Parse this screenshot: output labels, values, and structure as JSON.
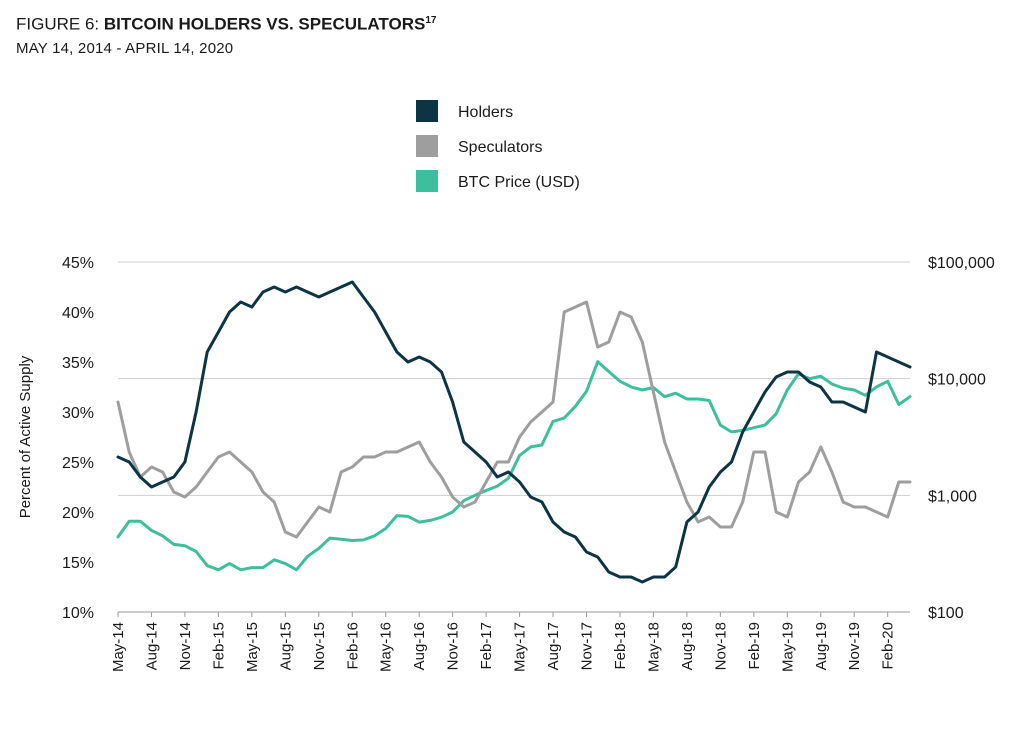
{
  "title": {
    "prefix": "FIGURE 6: ",
    "main": "BITCOIN HOLDERS VS. SPECULATORS",
    "superscript": "17"
  },
  "subtitle": "MAY 14, 2014 -  APRIL 14, 2020",
  "chart_data": {
    "type": "line",
    "title": "FIGURE 6: BITCOIN HOLDERS VS. SPECULATORS",
    "subtitle": "MAY 14, 2014 -  APRIL 14, 2020",
    "ylabel": "Percent of Active Supply",
    "x_tick_labels": [
      "May-14",
      "Aug-14",
      "Nov-14",
      "Feb-15",
      "May-15",
      "Aug-15",
      "Nov-15",
      "Feb-16",
      "May-16",
      "Aug-16",
      "Nov-16",
      "Feb-17",
      "May-17",
      "Aug-17",
      "Nov-17",
      "Feb-18",
      "May-18",
      "Aug-18",
      "Nov-18",
      "Feb-19",
      "May-19",
      "Aug-19",
      "Nov-19",
      "Feb-20"
    ],
    "y_left": {
      "ticks": [
        "10%",
        "15%",
        "20%",
        "25%",
        "30%",
        "35%",
        "40%",
        "45%"
      ],
      "range": [
        10,
        45
      ],
      "unit": "percent"
    },
    "y_right": {
      "ticks": [
        "$100",
        "$1,000",
        "$10,000",
        "$100,000"
      ],
      "range": [
        100,
        100000
      ],
      "scale": "log"
    },
    "grid": "horizontal, right-axis major ticks",
    "legend": {
      "position": "top-center"
    },
    "series": [
      {
        "name": "Holders",
        "axis": "left",
        "color": "#0d3444",
        "x": [
          "2014-05",
          "2014-06",
          "2014-07",
          "2014-08",
          "2014-09",
          "2014-10",
          "2014-11",
          "2014-12",
          "2015-01",
          "2015-02",
          "2015-03",
          "2015-04",
          "2015-05",
          "2015-06",
          "2015-07",
          "2015-08",
          "2015-09",
          "2015-10",
          "2015-11",
          "2015-12",
          "2016-01",
          "2016-02",
          "2016-03",
          "2016-04",
          "2016-05",
          "2016-06",
          "2016-07",
          "2016-08",
          "2016-09",
          "2016-10",
          "2016-11",
          "2016-12",
          "2017-01",
          "2017-02",
          "2017-03",
          "2017-04",
          "2017-05",
          "2017-06",
          "2017-07",
          "2017-08",
          "2017-09",
          "2017-10",
          "2017-11",
          "2017-12",
          "2018-01",
          "2018-02",
          "2018-03",
          "2018-04",
          "2018-05",
          "2018-06",
          "2018-07",
          "2018-08",
          "2018-09",
          "2018-10",
          "2018-11",
          "2018-12",
          "2019-01",
          "2019-02",
          "2019-03",
          "2019-04",
          "2019-05",
          "2019-06",
          "2019-07",
          "2019-08",
          "2019-09",
          "2019-10",
          "2019-11",
          "2019-12",
          "2020-01",
          "2020-02",
          "2020-03",
          "2020-04"
        ],
        "values": [
          25.5,
          25,
          23.5,
          22.5,
          23,
          23.5,
          25,
          30,
          36,
          38,
          40,
          41,
          40.5,
          42,
          42.5,
          42,
          42.5,
          42,
          41.5,
          42,
          42.5,
          43,
          41.5,
          40,
          38,
          36,
          35,
          35.5,
          35,
          34,
          31,
          27,
          26,
          25,
          23.5,
          24,
          23,
          21.5,
          21,
          19,
          18,
          17.5,
          16,
          15.5,
          14,
          13.5,
          13.5,
          13,
          13.5,
          13.5,
          14.5,
          19,
          20,
          22.5,
          24,
          25,
          28,
          30,
          32,
          33.5,
          34,
          34,
          33,
          32.5,
          31,
          31,
          30.5,
          30,
          36,
          35.5,
          35,
          34.5
        ]
      },
      {
        "name": "Speculators",
        "axis": "left",
        "color": "#9e9e9e",
        "x": [
          "2014-05",
          "2014-06",
          "2014-07",
          "2014-08",
          "2014-09",
          "2014-10",
          "2014-11",
          "2014-12",
          "2015-01",
          "2015-02",
          "2015-03",
          "2015-04",
          "2015-05",
          "2015-06",
          "2015-07",
          "2015-08",
          "2015-09",
          "2015-10",
          "2015-11",
          "2015-12",
          "2016-01",
          "2016-02",
          "2016-03",
          "2016-04",
          "2016-05",
          "2016-06",
          "2016-07",
          "2016-08",
          "2016-09",
          "2016-10",
          "2016-11",
          "2016-12",
          "2017-01",
          "2017-02",
          "2017-03",
          "2017-04",
          "2017-05",
          "2017-06",
          "2017-07",
          "2017-08",
          "2017-09",
          "2017-10",
          "2017-11",
          "2017-12",
          "2018-01",
          "2018-02",
          "2018-03",
          "2018-04",
          "2018-05",
          "2018-06",
          "2018-07",
          "2018-08",
          "2018-09",
          "2018-10",
          "2018-11",
          "2018-12",
          "2019-01",
          "2019-02",
          "2019-03",
          "2019-04",
          "2019-05",
          "2019-06",
          "2019-07",
          "2019-08",
          "2019-09",
          "2019-10",
          "2019-11",
          "2019-12",
          "2020-01",
          "2020-02",
          "2020-03",
          "2020-04"
        ],
        "values": [
          31,
          26,
          23.5,
          24.5,
          24,
          22,
          21.5,
          22.5,
          24,
          25.5,
          26,
          25,
          24,
          22,
          21,
          18,
          17.5,
          19,
          20.5,
          20,
          24,
          24.5,
          25.5,
          25.5,
          26,
          26,
          26.5,
          27,
          25,
          23.5,
          21.5,
          20.5,
          21,
          23,
          25,
          25,
          27.5,
          29,
          30,
          31,
          40,
          40.5,
          41,
          36.5,
          37,
          40,
          39.5,
          37,
          32,
          27,
          24,
          21,
          19,
          19.5,
          18.5,
          18.5,
          21,
          26,
          26,
          20,
          19.5,
          23,
          24,
          26.5,
          24,
          21,
          20.5,
          20.5,
          20,
          19.5,
          23,
          23
        ]
      },
      {
        "name": "BTC Price (USD)",
        "axis": "right",
        "color": "#3dbf9d",
        "x": [
          "2014-05",
          "2014-06",
          "2014-07",
          "2014-08",
          "2014-09",
          "2014-10",
          "2014-11",
          "2014-12",
          "2015-01",
          "2015-02",
          "2015-03",
          "2015-04",
          "2015-05",
          "2015-06",
          "2015-07",
          "2015-08",
          "2015-09",
          "2015-10",
          "2015-11",
          "2015-12",
          "2016-01",
          "2016-02",
          "2016-03",
          "2016-04",
          "2016-05",
          "2016-06",
          "2016-07",
          "2016-08",
          "2016-09",
          "2016-10",
          "2016-11",
          "2016-12",
          "2017-01",
          "2017-02",
          "2017-03",
          "2017-04",
          "2017-05",
          "2017-06",
          "2017-07",
          "2017-08",
          "2017-09",
          "2017-10",
          "2017-11",
          "2017-12",
          "2018-01",
          "2018-02",
          "2018-03",
          "2018-04",
          "2018-05",
          "2018-06",
          "2018-07",
          "2018-08",
          "2018-09",
          "2018-10",
          "2018-11",
          "2018-12",
          "2019-01",
          "2019-02",
          "2019-03",
          "2019-04",
          "2019-05",
          "2019-06",
          "2019-07",
          "2019-08",
          "2019-09",
          "2019-10",
          "2019-11",
          "2019-12",
          "2020-01",
          "2020-02",
          "2020-03",
          "2020-04"
        ],
        "values": [
          440,
          600,
          600,
          500,
          450,
          380,
          370,
          330,
          250,
          230,
          260,
          230,
          240,
          240,
          280,
          260,
          230,
          300,
          350,
          430,
          420,
          410,
          415,
          450,
          520,
          670,
          660,
          590,
          610,
          650,
          720,
          900,
          1000,
          1100,
          1200,
          1400,
          2200,
          2600,
          2700,
          4300,
          4600,
          5800,
          7800,
          14000,
          11500,
          9500,
          8500,
          8000,
          8400,
          7000,
          7500,
          6700,
          6700,
          6500,
          4000,
          3500,
          3600,
          3800,
          4000,
          5000,
          8000,
          11000,
          10000,
          10500,
          9000,
          8300,
          8000,
          7200,
          8500,
          9500,
          6000,
          7000
        ]
      }
    ]
  }
}
